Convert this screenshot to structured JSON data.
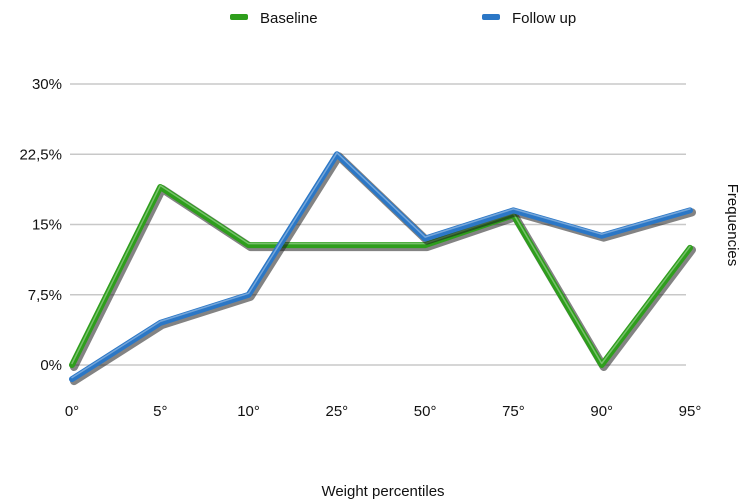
{
  "chart_data": {
    "type": "line",
    "title": "",
    "xlabel": "Weight percentiles",
    "ylabel": "Frequencies",
    "categories": [
      "0°",
      "5°",
      "10°",
      "25°",
      "50°",
      "75°",
      "90°",
      "95°"
    ],
    "y_tick_labels": [
      "0%",
      "7,5%",
      "15%",
      "22,5%",
      "30%"
    ],
    "ylim": [
      0,
      30
    ],
    "grid": true,
    "legend_position": "top",
    "series": [
      {
        "name": "Baseline",
        "color": "#2e9e1c",
        "values": [
          0,
          19,
          12.8,
          12.8,
          12.8,
          16,
          0,
          12.5
        ]
      },
      {
        "name": "Follow up",
        "color": "#2b77c6",
        "values": [
          -1.5,
          4.5,
          7.5,
          22.5,
          13.5,
          16.5,
          13.8,
          16.5
        ]
      }
    ]
  }
}
